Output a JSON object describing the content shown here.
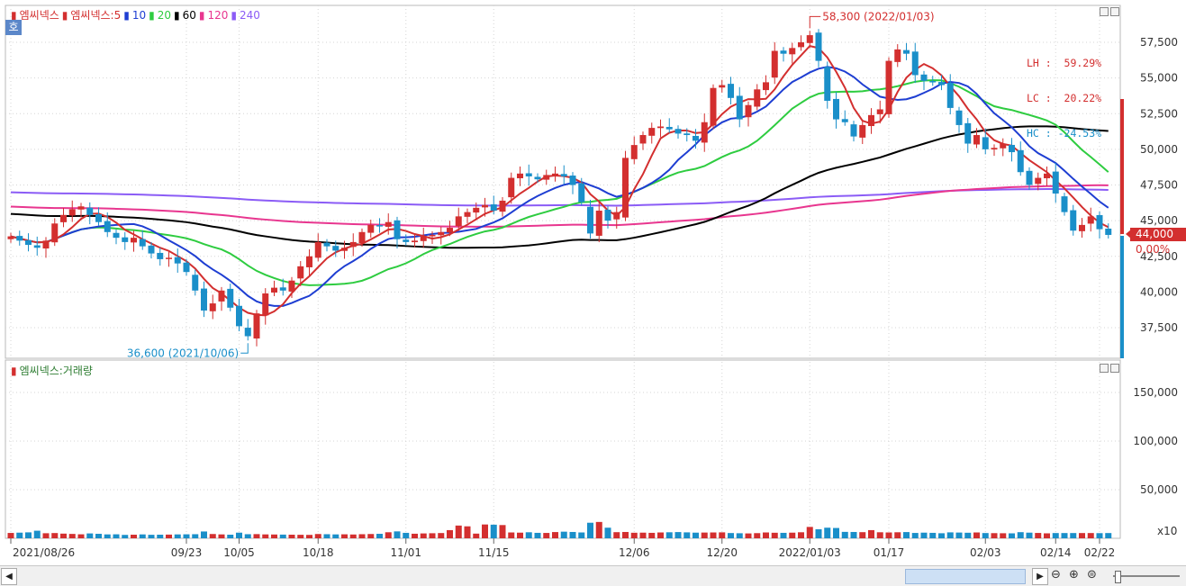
{
  "legend_top": [
    {
      "text": "엠씨넥스",
      "color": "#d32f2f"
    },
    {
      "text": "엠씨넥스:5",
      "color": "#d32f2f"
    },
    {
      "text": "10",
      "color": "#1e3ed2"
    },
    {
      "text": "20",
      "color": "#2ecc40"
    },
    {
      "text": "60",
      "color": "#000000"
    },
    {
      "text": "120",
      "color": "#e8368f"
    },
    {
      "text": "240",
      "color": "#8b5cf6"
    }
  ],
  "legend_bottom": {
    "text": "엠씨넥스:거래량",
    "color": "#2e7d32"
  },
  "badge": "호",
  "info": {
    "lh": "LH :  59.29%",
    "lc": "LC :  20.22%",
    "hc": "HC : -24.53%"
  },
  "current": {
    "price": "44,000",
    "change": "0.00%"
  },
  "volume_unit": "x10",
  "chart_data": {
    "type": "candlestick",
    "price_axis": {
      "ticks": [
        37500,
        40000,
        42500,
        45000,
        47500,
        50000,
        52500,
        55000,
        57500
      ],
      "tick_labels": [
        "37,500",
        "40,000",
        "42,500",
        "45,000",
        "47,500",
        "50,000",
        "52,500",
        "55,000",
        "57,500"
      ]
    },
    "volume_axis": {
      "ticks": [
        50000,
        100000,
        150000
      ],
      "tick_labels": [
        "50,000",
        "100,000",
        "150,000"
      ]
    },
    "date_labels": [
      "2021/08/26",
      "09/23",
      "10/05",
      "10/18",
      "11/01",
      "11/15",
      "12/06",
      "12/20",
      "2022/01/03",
      "01/17",
      "02/03",
      "02/14",
      "02/22"
    ],
    "date_label_bars": [
      0,
      20,
      26,
      35,
      45,
      55,
      71,
      81,
      91,
      100,
      111,
      119,
      124
    ],
    "annotations": [
      {
        "text": "58,300 (2022/01/03)",
        "color": "#d32f2f",
        "bar": 91,
        "price": 58300,
        "kind": "high"
      },
      {
        "text": "36,600 (2021/10/06)",
        "color": "#1a8fc9",
        "bar": 27,
        "price": 36600,
        "kind": "low"
      }
    ],
    "closes": [
      43900,
      43600,
      43300,
      43100,
      43600,
      44800,
      45400,
      45800,
      46000,
      45400,
      44900,
      44200,
      43800,
      43500,
      43800,
      43200,
      42700,
      42300,
      42400,
      42000,
      41400,
      40100,
      38700,
      39200,
      40100,
      38900,
      37600,
      36900,
      38500,
      39900,
      40300,
      40100,
      40800,
      41800,
      42500,
      43500,
      43200,
      42900,
      43100,
      43500,
      44200,
      44700,
      44600,
      44900,
      43700,
      43500,
      43600,
      43900,
      44000,
      44200,
      44500,
      45300,
      45600,
      45900,
      46100,
      45700,
      46400,
      48000,
      48300,
      48100,
      47900,
      48200,
      48300,
      48100,
      47500,
      46300,
      44100,
      45700,
      45000,
      45600,
      49400,
      50300,
      51000,
      51500,
      51600,
      51400,
      51100,
      51000,
      50600,
      51900,
      54300,
      54500,
      53600,
      52100,
      53100,
      54200,
      54700,
      56900,
      56700,
      57100,
      57500,
      58000,
      56200,
      53400,
      52100,
      51900,
      50900,
      51700,
      52400,
      52800,
      56200,
      57000,
      56700,
      55200,
      54800,
      54700,
      54500,
      52900,
      51700,
      50400,
      51000,
      50000,
      50100,
      50400,
      49800,
      48400,
      47500,
      48000,
      48300,
      46900,
      45600,
      44300,
      44700,
      45300,
      44400,
      44000
    ],
    "volume": [
      5500,
      5800,
      6100,
      7800,
      5200,
      5400,
      4800,
      4500,
      4100,
      5000,
      4600,
      4000,
      4100,
      3500,
      3700,
      4000,
      3600,
      3700,
      3800,
      4000,
      4100,
      4200,
      7000,
      4400,
      4000,
      3700,
      5800,
      4200,
      4300,
      4000,
      3900,
      3800,
      3700,
      3600,
      3500,
      4400,
      4200,
      4000,
      4100,
      3900,
      4200,
      4400,
      4600,
      6200,
      7100,
      5600,
      4700,
      5000,
      5200,
      5400,
      8400,
      13100,
      12300,
      4800,
      14200,
      14000,
      13600,
      6000,
      5800,
      6200,
      5600,
      5500,
      6400,
      6800,
      6500,
      6000,
      16000,
      16800,
      10900,
      6300,
      6500,
      5700,
      5800,
      5600,
      6000,
      6200,
      6400,
      6100,
      5800,
      5900,
      6000,
      6100,
      5400,
      5200,
      5000,
      5300,
      6000,
      5700,
      5600,
      5800,
      6200,
      11700,
      9300,
      10900,
      10600,
      6600,
      6500,
      6300,
      8400,
      6200,
      6000,
      6200,
      6400,
      5500,
      5800,
      5600,
      5200,
      6100,
      5900,
      5700,
      6000,
      5400,
      5300,
      5200,
      5100,
      6300,
      5800,
      5500,
      5100,
      5400,
      5400,
      5400,
      5400,
      5400,
      5300,
      5400
    ]
  }
}
